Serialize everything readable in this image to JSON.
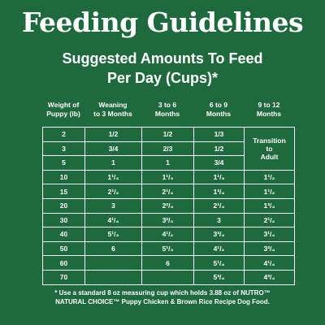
{
  "title": "Feeding Guidelines",
  "subtitle_line1": "Suggested Amounts To Feed",
  "subtitle_line2": "Per Day (Cups)*",
  "columns": [
    {
      "line1": "Weight of",
      "line2": "Puppy (lb)"
    },
    {
      "line1": "Weaning",
      "line2": "to 3 Months"
    },
    {
      "line1": "3 to 6",
      "line2": "Months"
    },
    {
      "line1": "6 to 9",
      "line2": "Months"
    },
    {
      "line1": "9 to 12",
      "line2": "Months"
    }
  ],
  "transition": {
    "line1": "Transition",
    "line2": "to",
    "line3": "Adult"
  },
  "rows": [
    [
      "2",
      "1/2",
      "1/2",
      "1/3",
      ""
    ],
    [
      "3",
      "3/4",
      "2/3",
      "1/2",
      ""
    ],
    [
      "5",
      "1",
      "1",
      "3/4",
      ""
    ],
    [
      "10",
      "1¹/₄",
      "1¹/₃",
      "1¹/₃",
      "1¹/₂"
    ],
    [
      "15",
      "2¹/₂",
      "2¹/₄",
      "1³/₄",
      "1¹/₂"
    ],
    [
      "20",
      "3",
      "2²/₃",
      "2¹/₄",
      "1³/₄"
    ],
    [
      "30",
      "4¹/₄",
      "3²/₃",
      "3",
      "2¹/₂"
    ],
    [
      "40",
      "5¹/₃",
      "4¹/₂",
      "3³/₄",
      "3¹/₄"
    ],
    [
      "50",
      "6",
      "5¹/₃",
      "4¹/₂",
      "3³/₄"
    ],
    [
      "60",
      "",
      "6",
      "5¹/₄",
      "4¹/₄"
    ],
    [
      "70",
      "",
      "",
      "5³/₄",
      "4³/₄"
    ]
  ],
  "footnote_line1": "* Use a standard 8 oz measuring cup which holds 3.88 oz of NUTRO™",
  "footnote_line2": "NATURAL CHOICE™ Puppy Chicken & Brown Rice Recipe Dog Food."
}
